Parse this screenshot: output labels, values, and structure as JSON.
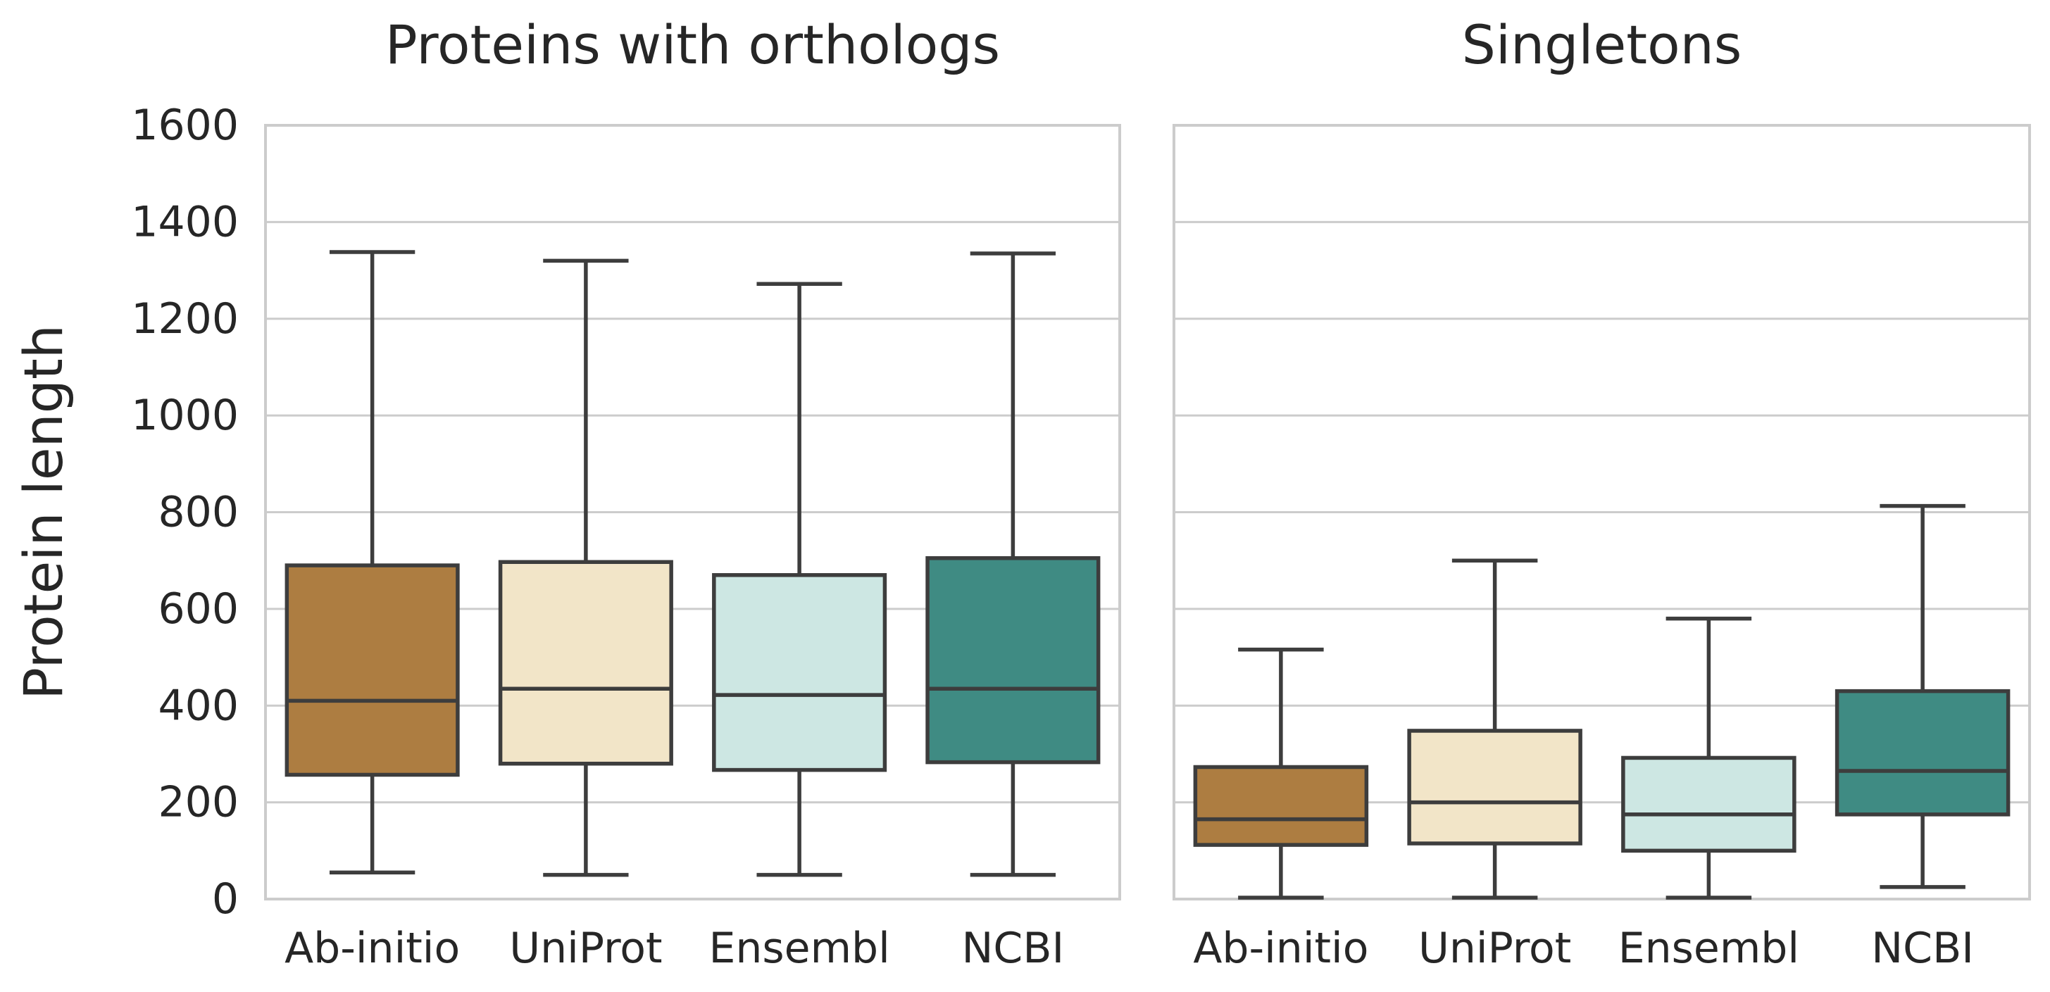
{
  "chart_data": {
    "type": "box",
    "ylabel": "Protein length",
    "ylim": [
      0,
      1600
    ],
    "yticks": [
      0,
      200,
      400,
      600,
      800,
      1000,
      1200,
      1400,
      1600
    ],
    "grid": true,
    "categories": [
      "Ab-initio",
      "UniProt",
      "Ensembl",
      "NCBI"
    ],
    "colors": [
      "#ad7d41",
      "#f2e5c8",
      "#cde7e3",
      "#3f8b83"
    ],
    "panels": [
      {
        "title": "Proteins with orthologs",
        "boxes": [
          {
            "category": "Ab-initio",
            "whisker_low": 55,
            "q1": 257,
            "median": 410,
            "q3": 690,
            "whisker_high": 1338
          },
          {
            "category": "UniProt",
            "whisker_low": 50,
            "q1": 280,
            "median": 435,
            "q3": 697,
            "whisker_high": 1320
          },
          {
            "category": "Ensembl",
            "whisker_low": 50,
            "q1": 267,
            "median": 422,
            "q3": 670,
            "whisker_high": 1272
          },
          {
            "category": "NCBI",
            "whisker_low": 50,
            "q1": 283,
            "median": 435,
            "q3": 705,
            "whisker_high": 1335
          }
        ]
      },
      {
        "title": "Singletons",
        "boxes": [
          {
            "category": "Ab-initio",
            "whisker_low": 3,
            "q1": 112,
            "median": 165,
            "q3": 273,
            "whisker_high": 516
          },
          {
            "category": "UniProt",
            "whisker_low": 3,
            "q1": 115,
            "median": 200,
            "q3": 348,
            "whisker_high": 700
          },
          {
            "category": "Ensembl",
            "whisker_low": 3,
            "q1": 100,
            "median": 175,
            "q3": 292,
            "whisker_high": 580
          },
          {
            "category": "NCBI",
            "whisker_low": 25,
            "q1": 175,
            "median": 265,
            "q3": 430,
            "whisker_high": 813
          }
        ]
      }
    ]
  }
}
